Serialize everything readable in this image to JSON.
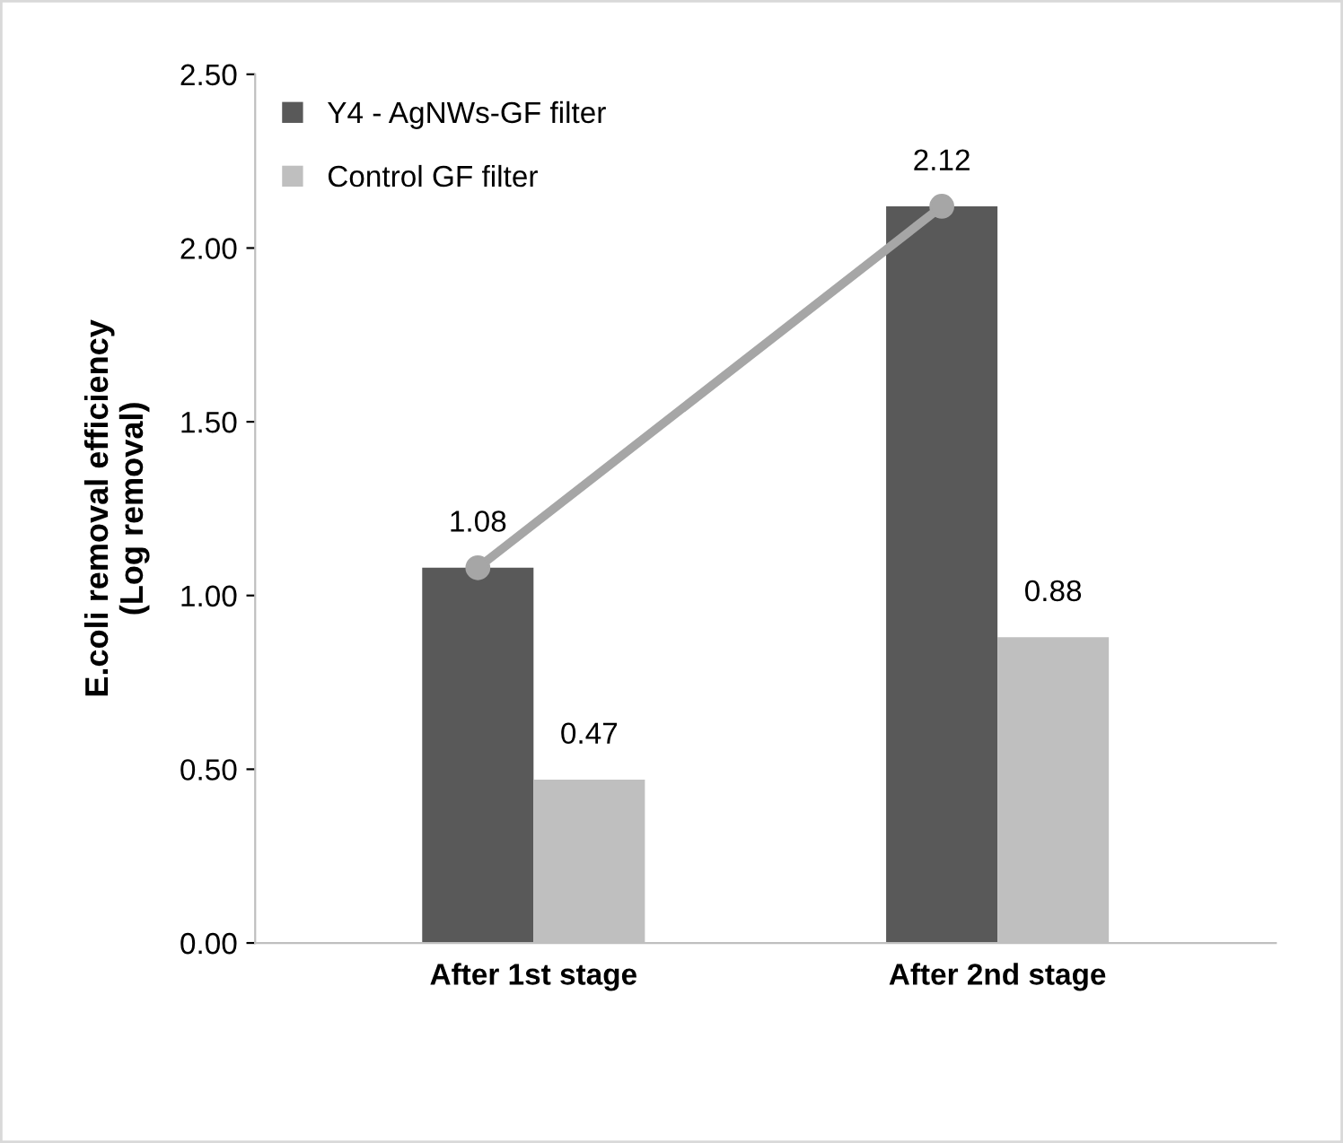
{
  "chart_data": {
    "type": "bar",
    "ylabel": "E.coli removal efficiency\n(Log removal)",
    "categories": [
      "After 1st stage",
      "After 2nd stage"
    ],
    "series": [
      {
        "name": "Y4 - AgNWs-GF filter",
        "color": "#595959",
        "values": [
          1.08,
          2.12
        ],
        "value_labels": [
          "1.08",
          "2.12"
        ]
      },
      {
        "name": "Control GF filter",
        "color": "#bfbfbf",
        "values": [
          0.47,
          0.88
        ],
        "value_labels": [
          "0.47",
          "0.88"
        ]
      },
      {
        "type": "line",
        "color": "#a6a6a6",
        "values": [
          1.08,
          2.12
        ],
        "marker": "circle"
      }
    ],
    "ylim": [
      0,
      2.5
    ],
    "yticks": [
      {
        "value": 0,
        "label": "0.00"
      },
      {
        "value": 0.5,
        "label": "0.50"
      },
      {
        "value": 1,
        "label": "1.00"
      },
      {
        "value": 1.5,
        "label": "1.50"
      },
      {
        "value": 2,
        "label": "2.00"
      },
      {
        "value": 2.5,
        "label": "2.50"
      }
    ],
    "legend": "top left",
    "grid": false
  }
}
